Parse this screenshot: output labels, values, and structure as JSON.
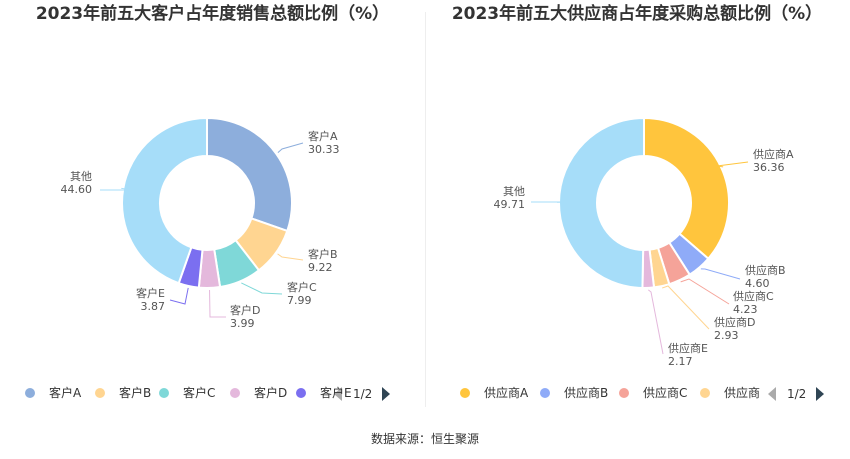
{
  "chart_data": [
    {
      "type": "pie",
      "title": "2023年前五大客户占年度销售总额比例（%）",
      "series": [
        {
          "name": "客户A",
          "value": 30.33,
          "value_label": "30.33",
          "color": "#8daedc"
        },
        {
          "name": "客户B",
          "value": 9.22,
          "value_label": "9.22",
          "color": "#ffd591"
        },
        {
          "name": "客户C",
          "value": 7.99,
          "value_label": "7.99",
          "color": "#7fd8d8"
        },
        {
          "name": "客户D",
          "value": 3.99,
          "value_label": "3.99",
          "color": "#e4b8dc"
        },
        {
          "name": "客户E",
          "value": 3.87,
          "value_label": "3.87",
          "color": "#7b6ff0"
        },
        {
          "name": "其他",
          "value": 44.6,
          "value_label": "44.60",
          "color": "#a6ddf9"
        }
      ],
      "legend_visible": [
        {
          "label": "客户A",
          "color": "#8daedc"
        },
        {
          "label": "客户B",
          "color": "#ffd591"
        },
        {
          "label": "客户C",
          "color": "#7fd8d8"
        },
        {
          "label": "客户D",
          "color": "#e4b8dc"
        },
        {
          "label": "客户E",
          "color": "#7b6ff0"
        }
      ],
      "legend_page": "1/2"
    },
    {
      "type": "pie",
      "title": "2023年前五大供应商占年度采购总额比例（%）",
      "series": [
        {
          "name": "供应商A",
          "value": 36.36,
          "value_label": "36.36",
          "color": "#ffc53d"
        },
        {
          "name": "供应商B",
          "value": 4.6,
          "value_label": "4.60",
          "color": "#8fabf8"
        },
        {
          "name": "供应商C",
          "value": 4.23,
          "value_label": "4.23",
          "color": "#f5a399"
        },
        {
          "name": "供应商D",
          "value": 2.93,
          "value_label": "2.93",
          "color": "#ffd591"
        },
        {
          "name": "供应商E",
          "value": 2.17,
          "value_label": "2.17",
          "color": "#e4b8dc"
        },
        {
          "name": "其他",
          "value": 49.71,
          "value_label": "49.71",
          "color": "#a6ddf9"
        }
      ],
      "legend_visible": [
        {
          "label": "供应商A",
          "color": "#ffc53d"
        },
        {
          "label": "供应商B",
          "color": "#8fabf8"
        },
        {
          "label": "供应商C",
          "color": "#f5a399"
        },
        {
          "label": "供应商",
          "color": "#ffd591"
        }
      ],
      "legend_page": "1/2"
    }
  ],
  "footer": {
    "source": "数据来源：恒生聚源"
  }
}
